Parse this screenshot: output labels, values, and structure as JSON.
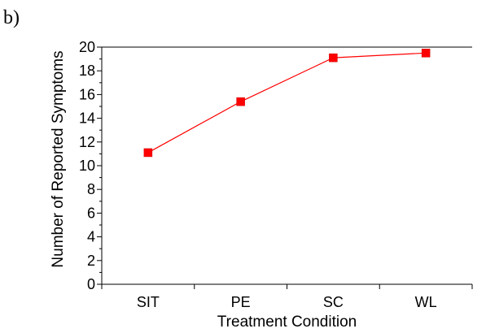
{
  "panel_label": "b)",
  "chart_data": {
    "type": "line",
    "categories": [
      "SIT",
      "PE",
      "SC",
      "WL"
    ],
    "series": [
      {
        "values": [
          11.1,
          15.4,
          19.1,
          19.5
        ],
        "color": "#ff0000",
        "marker": "square"
      }
    ],
    "xlabel": "Treatment Condition",
    "ylabel": "Number of Reported Symptoms",
    "ylim": [
      0,
      20
    ],
    "yticks": [
      0,
      2,
      4,
      6,
      8,
      10,
      12,
      14,
      16,
      18,
      20
    ],
    "grid": false
  }
}
